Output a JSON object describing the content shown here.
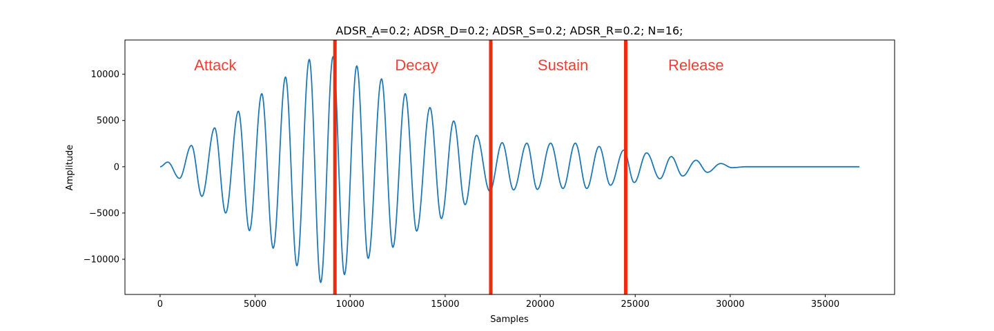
{
  "chart_data": {
    "type": "line",
    "title": "ADSR_A=0.2; ADSR_D=0.2; ADSR_S=0.2; ADSR_R=0.2; N=16;",
    "xlabel": "Samples",
    "ylabel": "Amplitude",
    "xlim": [
      -1850,
      38650
    ],
    "ylim": [
      -13800,
      13700
    ],
    "xticks": [
      0,
      5000,
      10000,
      15000,
      20000,
      25000,
      30000,
      35000
    ],
    "yticks": [
      -10000,
      -5000,
      0,
      5000,
      10000
    ],
    "xtick_labels": [
      "0",
      "5000",
      "10000",
      "15000",
      "20000",
      "25000",
      "30000",
      "35000"
    ],
    "ytick_labels": [
      "−10000",
      "−5000",
      "0",
      "5000",
      "10000"
    ],
    "grid": false,
    "line_color": "#1f77b4",
    "marker_color": "#ee2a10",
    "label_color": "#f03f32",
    "series": [
      {
        "peaks": [
          [
            0,
            0
          ],
          [
            400,
            500
          ],
          [
            1020,
            -1250
          ],
          [
            1650,
            2300
          ],
          [
            2200,
            -3200
          ],
          [
            2870,
            4200
          ],
          [
            3450,
            -5000
          ],
          [
            4120,
            6000
          ],
          [
            4700,
            -6900
          ],
          [
            5350,
            7900
          ],
          [
            5950,
            -8800
          ],
          [
            6600,
            9700
          ],
          [
            7200,
            -10700
          ],
          [
            7850,
            11600
          ],
          [
            8450,
            -12500
          ],
          [
            9100,
            11900
          ],
          [
            9700,
            -11650
          ],
          [
            10350,
            10900
          ],
          [
            10950,
            -9900
          ],
          [
            11650,
            9500
          ],
          [
            12250,
            -8700
          ],
          [
            12900,
            7900
          ],
          [
            13500,
            -6950
          ],
          [
            14200,
            6400
          ],
          [
            14800,
            -5600
          ],
          [
            15450,
            4950
          ],
          [
            16050,
            -4100
          ],
          [
            16650,
            3400
          ],
          [
            17350,
            -2650
          ],
          [
            18000,
            2600
          ],
          [
            18600,
            -2500
          ],
          [
            19300,
            2550
          ],
          [
            19850,
            -2450
          ],
          [
            20550,
            2550
          ],
          [
            21200,
            -2350
          ],
          [
            21850,
            2550
          ],
          [
            22450,
            -2350
          ],
          [
            23100,
            2200
          ],
          [
            23700,
            -2000
          ],
          [
            24400,
            1800
          ],
          [
            24950,
            -1700
          ],
          [
            25600,
            1500
          ],
          [
            26300,
            -1300
          ],
          [
            26900,
            1100
          ],
          [
            27500,
            -1000
          ],
          [
            28200,
            700
          ],
          [
            28800,
            -600
          ],
          [
            29500,
            350
          ],
          [
            30100,
            -100
          ],
          [
            30800,
            0
          ],
          [
            36800,
            0
          ]
        ]
      }
    ],
    "markers": [
      9200,
      17400,
      24500
    ],
    "annotations": [
      {
        "text": "Attack",
        "x": 2900,
        "y": 11000
      },
      {
        "text": "Decay",
        "x": 13500,
        "y": 11000
      },
      {
        "text": "Sustain",
        "x": 21200,
        "y": 11000
      },
      {
        "text": "Release",
        "x": 28200,
        "y": 11000
      }
    ]
  }
}
